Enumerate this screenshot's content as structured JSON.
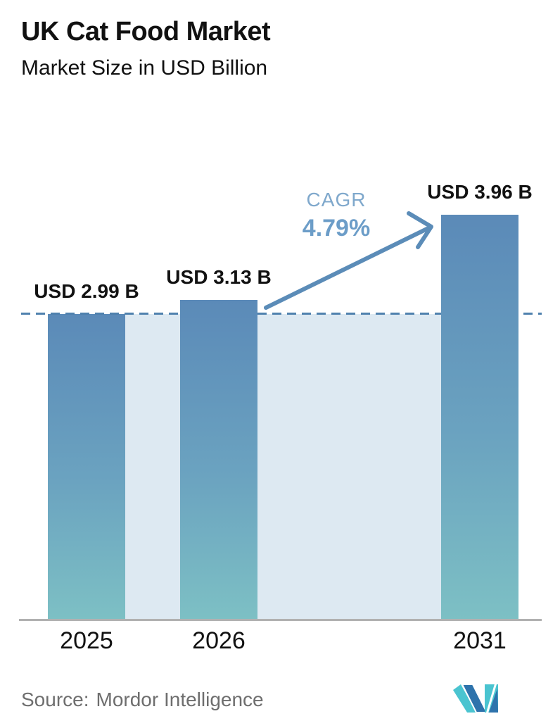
{
  "header": {
    "title": "UK Cat Food Market",
    "subtitle": "Market Size in USD Billion"
  },
  "chart_data": {
    "type": "bar",
    "title": "UK Cat Food Market",
    "subtitle": "Market Size in USD Billion",
    "categories": [
      "2025",
      "2026",
      "2031"
    ],
    "values": [
      2.99,
      3.13,
      3.96
    ],
    "bar_labels": [
      "USD 2.99 B",
      "USD 3.13 B",
      "USD 3.96 B"
    ],
    "unit": "USD Billion",
    "ylim": [
      0,
      4.3
    ],
    "grid": false,
    "reference_line": {
      "value": 2.99,
      "style": "dashed"
    },
    "annotations": {
      "cagr_label": "CAGR",
      "cagr_value": "4.79%",
      "arrow": "from 2026 bar to 2031 bar"
    }
  },
  "footer": {
    "source_label": "Source:",
    "source_value": "Mordor Intelligence",
    "logo": "mordor-intelligence-logo"
  },
  "colors": {
    "bar_top": "#5b8ab8",
    "bar_mid": "#6ba3c0",
    "bar_bottom": "#7dc0c4",
    "fill_area": "#dde9f2",
    "dashed_line": "#4f81ae",
    "arrow": "#5b8cb8",
    "cagr_label": "#7fa8cc",
    "cagr_value": "#6c9dc8",
    "axis_line": "#b1b1b1",
    "title_text": "#111111",
    "source_text": "#6e6e6e",
    "logo_teal": "#4ac4d0",
    "logo_blue": "#2e73ac"
  }
}
